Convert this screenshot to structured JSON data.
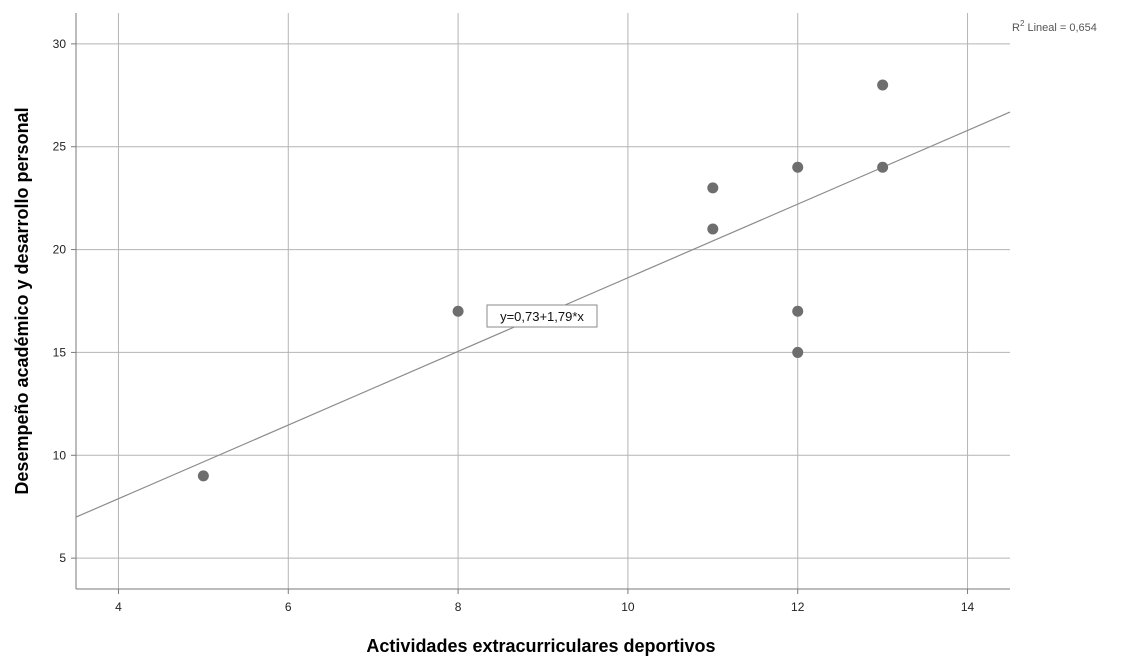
{
  "chart_data": {
    "type": "scatter",
    "xlabel": "Actividades extracurriculares deportivos",
    "ylabel": "Desempeño académico y desarrollo personal",
    "xlim": [
      3.5,
      14.5
    ],
    "ylim": [
      3.5,
      31.5
    ],
    "x_ticks": [
      4,
      6,
      8,
      10,
      12,
      14
    ],
    "y_ticks": [
      5,
      10,
      15,
      20,
      25,
      30
    ],
    "grid": true,
    "points": [
      {
        "x": 5,
        "y": 9
      },
      {
        "x": 8,
        "y": 17
      },
      {
        "x": 11,
        "y": 23
      },
      {
        "x": 11,
        "y": 21
      },
      {
        "x": 12,
        "y": 24
      },
      {
        "x": 12,
        "y": 17
      },
      {
        "x": 12,
        "y": 15
      },
      {
        "x": 13,
        "y": 28
      },
      {
        "x": 13,
        "y": 24
      }
    ],
    "fit_line": {
      "intercept": 0.73,
      "slope": 1.79,
      "equation_label": "y=0,73+1,79*x"
    },
    "r2": {
      "prefix": "R",
      "superscript": "2",
      "text": " Lineal = 0,654"
    },
    "colors": {
      "points": "#6e6e6e",
      "gridlines": "#b4b4b4",
      "axes": "#7a7a7a",
      "fit_line": "#8c8c8c"
    }
  }
}
